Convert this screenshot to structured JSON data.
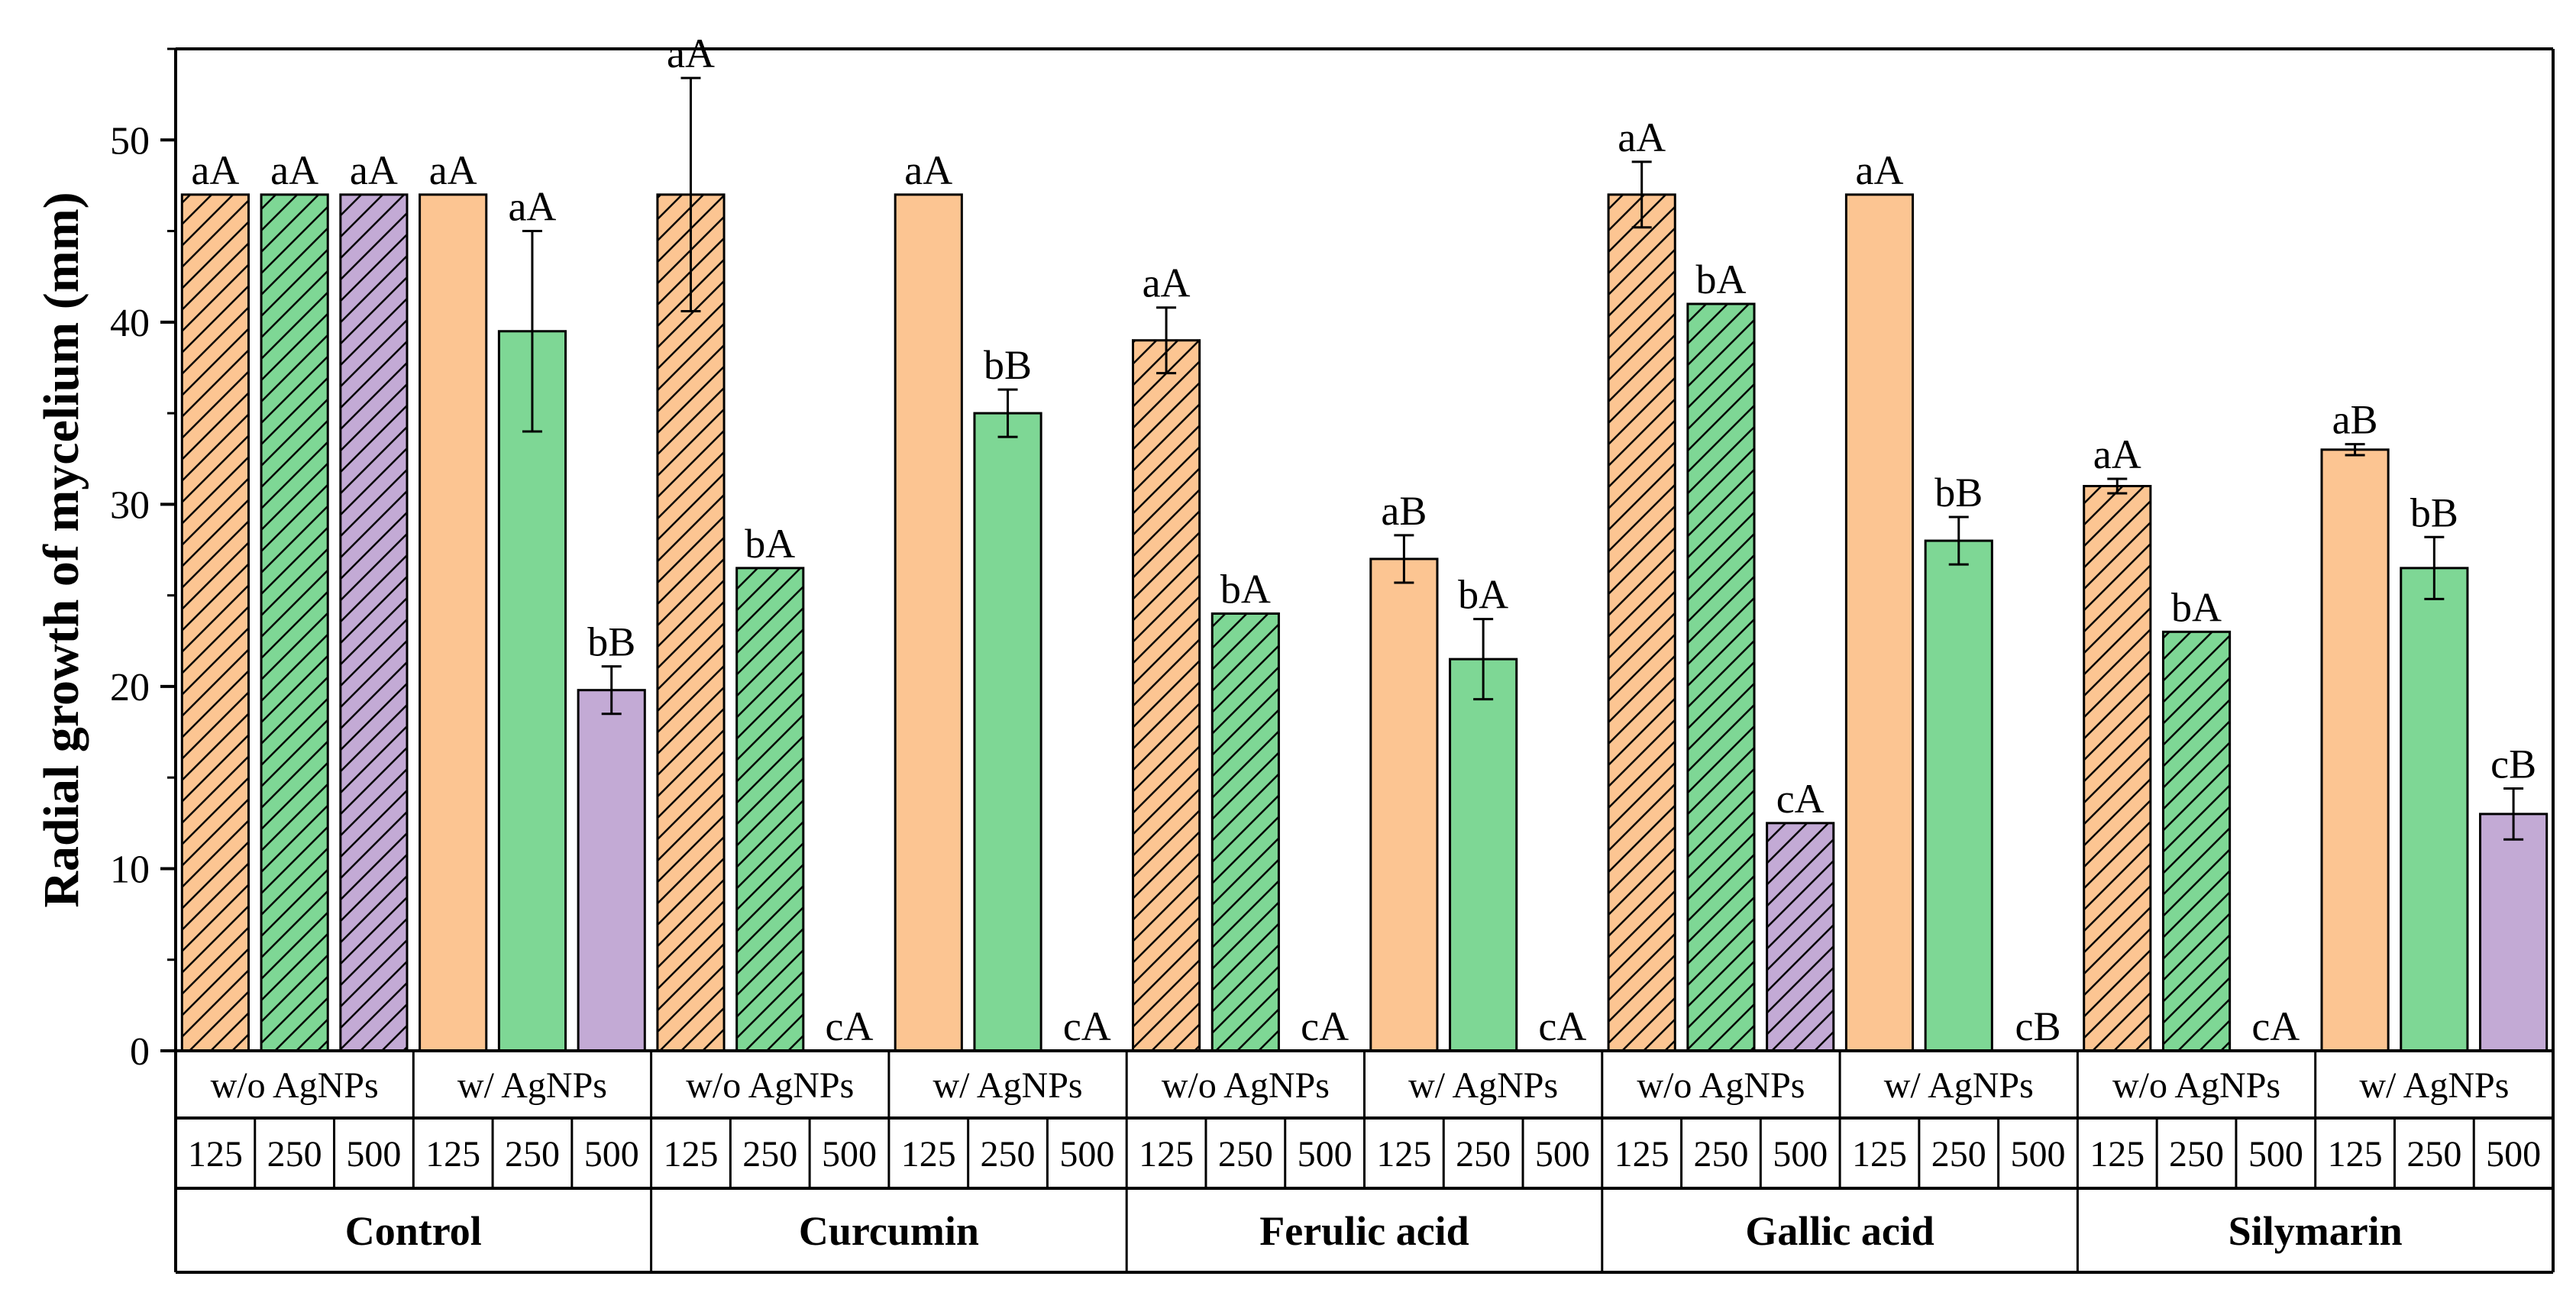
{
  "chart_data": {
    "type": "bar",
    "ylabel": "Radial growth of mycelium (mm)",
    "ylim": [
      0,
      55
    ],
    "yticks": [
      0,
      10,
      20,
      30,
      40,
      50
    ],
    "treatments": [
      {
        "name": "Control",
        "groups": [
          {
            "condition": "w/o AgNPs",
            "bars": [
              {
                "concentration": "125",
                "value": 47,
                "error": 0,
                "label": "aA"
              },
              {
                "concentration": "250",
                "value": 47,
                "error": 0,
                "label": "aA"
              },
              {
                "concentration": "500",
                "value": 47,
                "error": 0,
                "label": "aA"
              }
            ]
          },
          {
            "condition": "w/ AgNPs",
            "bars": [
              {
                "concentration": "125",
                "value": 47,
                "error": 0,
                "label": "aA"
              },
              {
                "concentration": "250",
                "value": 39.5,
                "error": 5.5,
                "label": "aA"
              },
              {
                "concentration": "500",
                "value": 19.8,
                "error": 1.3,
                "label": "bB"
              }
            ]
          }
        ]
      },
      {
        "name": "Curcumin",
        "groups": [
          {
            "condition": "w/o AgNPs",
            "bars": [
              {
                "concentration": "125",
                "value": 47,
                "error": 6.4,
                "label": "aA"
              },
              {
                "concentration": "250",
                "value": 26.5,
                "error": 0,
                "label": "bA"
              },
              {
                "concentration": "500",
                "value": 0,
                "error": 0,
                "label": "cA"
              }
            ]
          },
          {
            "condition": "w/ AgNPs",
            "bars": [
              {
                "concentration": "125",
                "value": 47,
                "error": 0,
                "label": "aA"
              },
              {
                "concentration": "250",
                "value": 35,
                "error": 1.3,
                "label": "bB"
              },
              {
                "concentration": "500",
                "value": 0,
                "error": 0,
                "label": "cA"
              }
            ]
          }
        ]
      },
      {
        "name": "Ferulic acid",
        "groups": [
          {
            "condition": "w/o AgNPs",
            "bars": [
              {
                "concentration": "125",
                "value": 39,
                "error": 1.8,
                "label": "aA"
              },
              {
                "concentration": "250",
                "value": 24,
                "error": 0,
                "label": "bA"
              },
              {
                "concentration": "500",
                "value": 0,
                "error": 0,
                "label": "cA"
              }
            ]
          },
          {
            "condition": "w/ AgNPs",
            "bars": [
              {
                "concentration": "125",
                "value": 27,
                "error": 1.3,
                "label": "aB"
              },
              {
                "concentration": "250",
                "value": 21.5,
                "error": 2.2,
                "label": "bA"
              },
              {
                "concentration": "500",
                "value": 0,
                "error": 0,
                "label": "cA"
              }
            ]
          }
        ]
      },
      {
        "name": "Gallic acid",
        "groups": [
          {
            "condition": "w/o AgNPs",
            "bars": [
              {
                "concentration": "125",
                "value": 47,
                "error": 1.8,
                "label": "aA"
              },
              {
                "concentration": "250",
                "value": 41,
                "error": 0,
                "label": "bA"
              },
              {
                "concentration": "500",
                "value": 12.5,
                "error": 0,
                "label": "cA"
              }
            ]
          },
          {
            "condition": "w/ AgNPs",
            "bars": [
              {
                "concentration": "125",
                "value": 47,
                "error": 0,
                "label": "aA"
              },
              {
                "concentration": "250",
                "value": 28,
                "error": 1.3,
                "label": "bB"
              },
              {
                "concentration": "500",
                "value": 0,
                "error": 0,
                "label": "cB"
              }
            ]
          }
        ]
      },
      {
        "name": "Silymarin",
        "groups": [
          {
            "condition": "w/o AgNPs",
            "bars": [
              {
                "concentration": "125",
                "value": 31,
                "error": 0.4,
                "label": "aA"
              },
              {
                "concentration": "250",
                "value": 23,
                "error": 0,
                "label": "bA"
              },
              {
                "concentration": "500",
                "value": 0,
                "error": 0,
                "label": "cA"
              }
            ]
          },
          {
            "condition": "w/ AgNPs",
            "bars": [
              {
                "concentration": "125",
                "value": 33,
                "error": 0.3,
                "label": "aB"
              },
              {
                "concentration": "250",
                "value": 26.5,
                "error": 1.7,
                "label": "bB"
              },
              {
                "concentration": "500",
                "value": 13,
                "error": 1.4,
                "label": "cB"
              }
            ]
          }
        ]
      }
    ],
    "colors": {
      "125": "#FCC592",
      "250": "#7ED795",
      "500": "#C3AAD5"
    },
    "hatched_condition": "w/o AgNPs"
  }
}
